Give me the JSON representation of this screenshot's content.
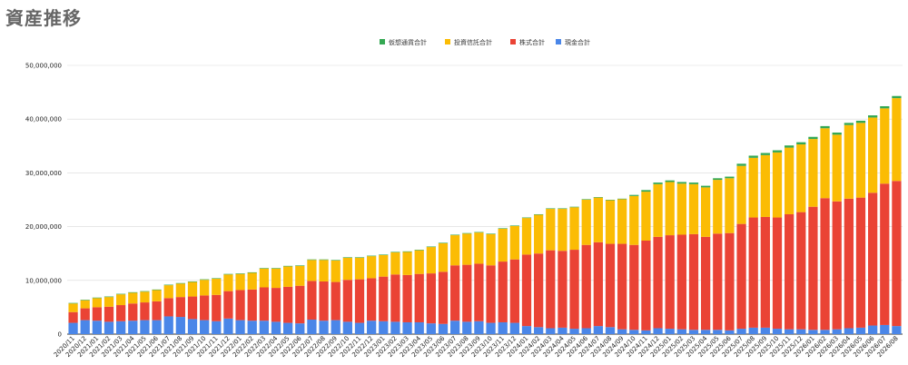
{
  "title": "資産推移",
  "chart_data": {
    "type": "bar",
    "stacked": true,
    "legend_position": "top",
    "grid": true,
    "ylim": [
      0,
      50000000
    ],
    "yticks": [
      0,
      10000000,
      20000000,
      30000000,
      40000000,
      50000000
    ],
    "ytick_labels": [
      "0",
      "10,000,000",
      "20,000,000",
      "30,000,000",
      "40,000,000",
      "50,000,000"
    ],
    "categories": [
      "2020/11",
      "2020/12",
      "2021/01",
      "2021/02",
      "2021/03",
      "2021/04",
      "2021/05",
      "2021/06",
      "2021/07",
      "2021/08",
      "2021/09",
      "2021/10",
      "2021/11",
      "2021/12",
      "2022/01",
      "2022/02",
      "2022/03",
      "2022/04",
      "2022/05",
      "2022/06",
      "2022/07",
      "2022/08",
      "2022/09",
      "2022/10",
      "2022/11",
      "2022/12",
      "2023/01",
      "2023/02",
      "2023/03",
      "2023/04",
      "2023/05",
      "2023/06",
      "2023/07",
      "2023/08",
      "2023/09",
      "2023/10",
      "2023/11",
      "2023/12",
      "2024/01",
      "2024/02",
      "2024/03",
      "2024/04",
      "2024/05",
      "2024/06",
      "2024/07",
      "2024/08",
      "2024/09",
      "2024/10",
      "2024/11",
      "2024/12",
      "2025/01",
      "2025/02",
      "2025/03",
      "2025/04",
      "2025/05",
      "2025/06",
      "2025/07",
      "2025/08",
      "2025/09",
      "2025/10",
      "2025/11",
      "2025/12",
      "2026/01",
      "2026/02",
      "2026/03",
      "2026/04",
      "2026/05",
      "2026/06",
      "2026/07",
      "2026/08"
    ],
    "series": [
      {
        "name": "現金合計",
        "color": "#4a86e8",
        "values": [
          2100000,
          2600000,
          2500000,
          2300000,
          2400000,
          2500000,
          2600000,
          2600000,
          3300000,
          3200000,
          2800000,
          2600000,
          2400000,
          2900000,
          2600000,
          2500000,
          2500000,
          2300000,
          2100000,
          2000000,
          2700000,
          2500000,
          2600000,
          2300000,
          2100000,
          2500000,
          2400000,
          2300000,
          2200000,
          2200000,
          2000000,
          1900000,
          2500000,
          2300000,
          2400000,
          2100000,
          2200000,
          2100000,
          1500000,
          1300000,
          1100000,
          1200000,
          1000000,
          1100000,
          1500000,
          1300000,
          900000,
          800000,
          700000,
          1100000,
          1000000,
          900000,
          800000,
          800000,
          800000,
          700000,
          1000000,
          1200000,
          1200000,
          1000000,
          900000,
          900000,
          800000,
          800000,
          900000,
          1100000,
          1200000,
          1600000,
          1700000,
          1500000
        ]
      },
      {
        "name": "株式合計",
        "color": "#ea4335",
        "values": [
          2000000,
          2200000,
          2500000,
          2800000,
          3000000,
          3200000,
          3300000,
          3500000,
          3400000,
          3700000,
          4200000,
          4600000,
          4900000,
          5100000,
          5600000,
          5800000,
          6200000,
          6300000,
          6700000,
          7000000,
          7200000,
          7300000,
          7100000,
          7800000,
          8100000,
          7900000,
          8300000,
          8800000,
          8800000,
          9000000,
          9300000,
          9700000,
          10300000,
          10600000,
          10700000,
          10700000,
          11300000,
          11800000,
          13300000,
          13700000,
          14500000,
          14300000,
          14700000,
          15500000,
          15600000,
          15500000,
          15900000,
          15800000,
          16700000,
          17000000,
          17400000,
          17600000,
          17800000,
          17300000,
          17900000,
          18100000,
          19500000,
          20500000,
          20600000,
          20700000,
          21400000,
          21800000,
          22900000,
          24500000,
          23800000,
          24100000,
          24200000,
          24700000,
          26300000,
          27000000
        ]
      },
      {
        "name": "投資信託合計",
        "color": "#fbbc04",
        "values": [
          1600000,
          1500000,
          1700000,
          1800000,
          2000000,
          2000000,
          2000000,
          2100000,
          2400000,
          2500000,
          2700000,
          2900000,
          3000000,
          3100000,
          3000000,
          3100000,
          3500000,
          3600000,
          3800000,
          3700000,
          3900000,
          4000000,
          4000000,
          4100000,
          4000000,
          4100000,
          4000000,
          4100000,
          4300000,
          4400000,
          4900000,
          5300000,
          5600000,
          5800000,
          5800000,
          5800000,
          6100000,
          6200000,
          6800000,
          7200000,
          7700000,
          7800000,
          7900000,
          8400000,
          8300000,
          8100000,
          8300000,
          9100000,
          9100000,
          9800000,
          9900000,
          9500000,
          9300000,
          9200000,
          10000000,
          10200000,
          10800000,
          11100000,
          11500000,
          12100000,
          12400000,
          12600000,
          12600000,
          13000000,
          12400000,
          13700000,
          13900000,
          14000000,
          14000000,
          15400000
        ]
      },
      {
        "name": "仮想通貨合計",
        "color": "#34a853",
        "values": [
          100000,
          100000,
          100000,
          100000,
          100000,
          100000,
          100000,
          100000,
          100000,
          100000,
          100000,
          100000,
          100000,
          100000,
          100000,
          100000,
          100000,
          100000,
          100000,
          100000,
          100000,
          100000,
          100000,
          100000,
          100000,
          100000,
          100000,
          100000,
          100000,
          100000,
          100000,
          100000,
          100000,
          100000,
          100000,
          100000,
          100000,
          100000,
          100000,
          100000,
          100000,
          100000,
          100000,
          100000,
          100000,
          100000,
          100000,
          200000,
          300000,
          300000,
          300000,
          300000,
          300000,
          300000,
          300000,
          300000,
          400000,
          400000,
          400000,
          400000,
          400000,
          400000,
          400000,
          400000,
          400000,
          400000,
          400000,
          400000,
          400000,
          400000
        ]
      }
    ],
    "legend_order": [
      "仮想通貨合計",
      "投資信託合計",
      "株式合計",
      "現金合計"
    ]
  }
}
